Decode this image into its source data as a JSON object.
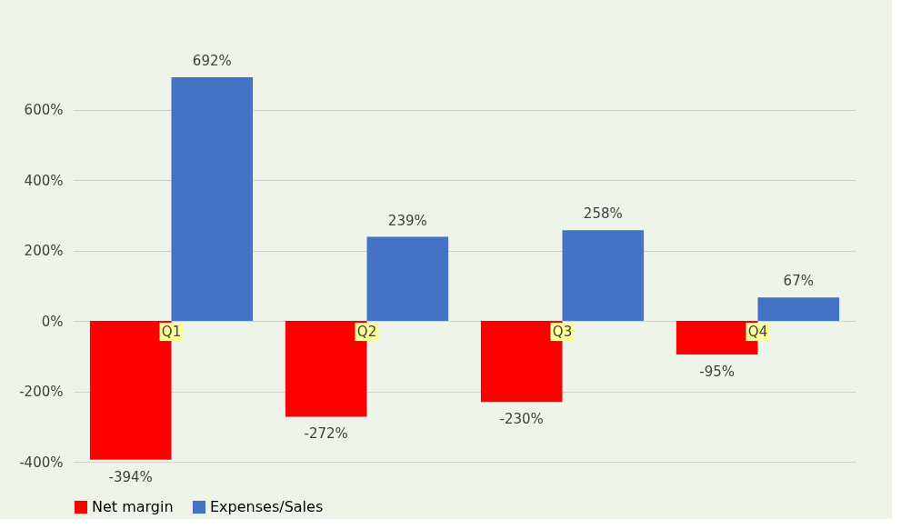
{
  "chart_data": {
    "type": "bar",
    "categories": [
      "Q1",
      "Q2",
      "Q3",
      "Q4"
    ],
    "series": [
      {
        "name": "Net margin",
        "color": "#ff0000",
        "values": [
          -394,
          -272,
          -230,
          -95
        ],
        "value_labels": [
          "-394%",
          "-272%",
          "-230%",
          "-95%"
        ]
      },
      {
        "name": "Expenses/Sales",
        "color": "#4472c4",
        "values": [
          692,
          239,
          258,
          67
        ],
        "value_labels": [
          "692%",
          "239%",
          "258%",
          "67%"
        ]
      }
    ],
    "ylim": [
      -400,
      700
    ],
    "yticks": [
      {
        "value": -400,
        "label": "-400%"
      },
      {
        "value": -200,
        "label": "-200%"
      },
      {
        "value": 0,
        "label": "0%"
      },
      {
        "value": 200,
        "label": "200%"
      },
      {
        "value": 400,
        "label": "400%"
      },
      {
        "value": 600,
        "label": "600%"
      }
    ],
    "grid": "y",
    "legend": "bottom"
  }
}
